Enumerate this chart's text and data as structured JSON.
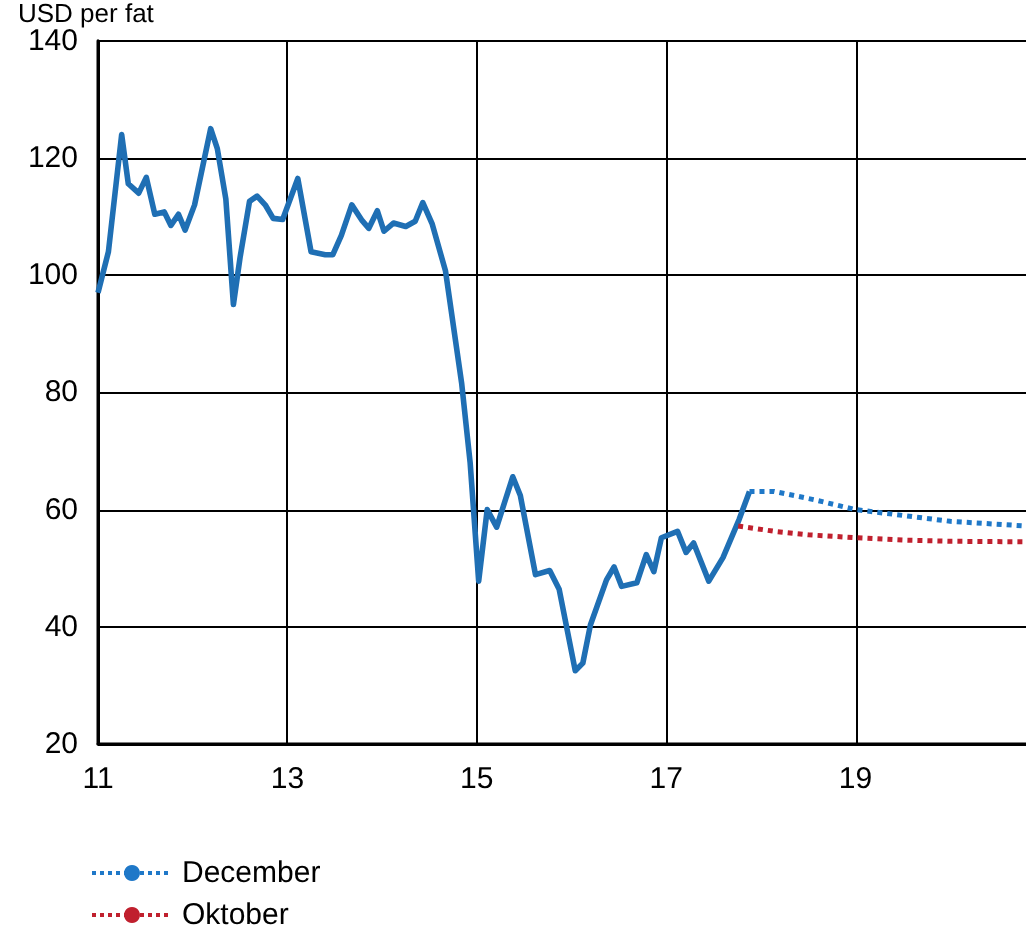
{
  "chart_data": {
    "type": "line",
    "ylabel": "USD per fat",
    "xlim": [
      11,
      20.8
    ],
    "xticks": [
      11,
      13,
      15,
      17,
      19
    ],
    "ylim": [
      20,
      140
    ],
    "yticks": [
      20,
      40,
      60,
      80,
      100,
      120,
      140
    ],
    "grid": true,
    "legend": "bottom left",
    "marker": "none",
    "series": [
      {
        "color": "#1f6fb4",
        "line_style": "solid",
        "x": [
          11.0,
          11.11,
          11.25,
          11.32,
          11.43,
          11.51,
          11.6,
          11.7,
          11.77,
          11.85,
          11.92,
          12.02,
          12.19,
          12.26,
          12.35,
          12.43,
          12.5,
          12.6,
          12.68,
          12.77,
          12.85,
          12.95,
          13.11,
          13.25,
          13.4,
          13.48,
          13.57,
          13.68,
          13.79,
          13.86,
          13.95,
          14.02,
          14.12,
          14.25,
          14.35,
          14.43,
          14.53,
          14.67,
          14.84,
          14.93,
          15.02,
          15.11,
          15.21,
          15.38,
          15.46,
          15.62,
          15.77,
          15.87,
          16.04,
          16.12,
          16.2,
          16.37,
          16.45,
          16.53,
          16.69,
          16.79,
          16.87,
          16.95,
          17.12,
          17.21,
          17.29,
          17.45,
          17.6,
          17.77,
          17.88
        ],
        "values": [
          97,
          104,
          124,
          115.6,
          114,
          116.7,
          110.4,
          110.8,
          108.5,
          110.4,
          107.7,
          112,
          125,
          121.6,
          113,
          95,
          103,
          112.6,
          113.5,
          111.9,
          109.7,
          109.5,
          116.5,
          104,
          103.5,
          103.5,
          106.8,
          112,
          109.3,
          108,
          111,
          107.5,
          108.9,
          108.3,
          109.2,
          112.4,
          108.7,
          100.7,
          81.6,
          68,
          47.8,
          60,
          57,
          65.6,
          62.4,
          48.9,
          49.6,
          46.4,
          32.5,
          33.8,
          40.3,
          48,
          50.2,
          46.9,
          47.5,
          52.3,
          49.4,
          55.2,
          56.3,
          52.7,
          54.3,
          47.8,
          51.8,
          58.3,
          63.1
        ]
      },
      {
        "name": "December",
        "color": "#1f78c8",
        "line_style": "dotted",
        "x": [
          17.88,
          18.14,
          18.56,
          19,
          19.5,
          20,
          20.8
        ],
        "values": [
          63.1,
          63.1,
          61.7,
          60,
          59,
          58,
          57.2
        ]
      },
      {
        "name": "Oktober",
        "color": "#c0202e",
        "line_style": "dotted",
        "x": [
          17.76,
          18.14,
          18.5,
          19,
          19.5,
          20,
          20.8
        ],
        "values": [
          57.2,
          56.3,
          55.7,
          55.2,
          54.8,
          54.6,
          54.5
        ]
      }
    ]
  }
}
